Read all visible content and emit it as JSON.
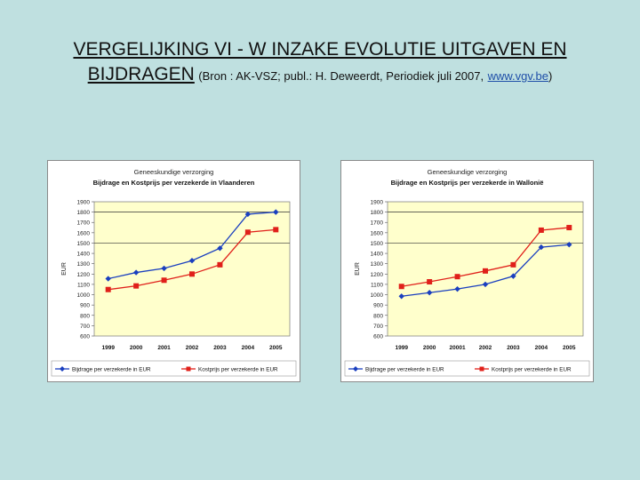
{
  "slide": {
    "title_line1": "VERGELIJKING VI - W INZAKE EVOLUTIE UITGAVEN EN",
    "title_line2_main": "BIJDRAGEN",
    "title_line2_source_prefix": "(Bron : AK-VSZ; publ.: H. Deweerdt, Periodiek juli 2007,",
    "title_line2_link": "www.vgv.be",
    "title_line2_source_suffix": ")"
  },
  "chart_data": [
    {
      "type": "line",
      "title": "Geneeskundige verzorging",
      "subtitle": "Bijdrage en Kostprijs per verzekerde in Vlaanderen",
      "xlabel": "",
      "ylabel": "EUR",
      "categories": [
        "1999",
        "2000",
        "2001",
        "2002",
        "2003",
        "2004",
        "2005"
      ],
      "ylim": [
        600,
        1900
      ],
      "yticks": [
        600,
        700,
        800,
        900,
        1000,
        1100,
        1200,
        1300,
        1400,
        1500,
        1600,
        1700,
        1800,
        1900
      ],
      "gridlines": [
        1500,
        1800
      ],
      "legend_position": "bottom",
      "plot_background": "#ffffcc",
      "series": [
        {
          "name": "Bijdrage per verzekerde in EUR",
          "color": "#1a3fbf",
          "marker": "diamond",
          "values": [
            1155,
            1215,
            1255,
            1330,
            1450,
            1780,
            1800
          ]
        },
        {
          "name": "Kostprijs per verzekerde in EUR",
          "color": "#e0201a",
          "marker": "square",
          "values": [
            1050,
            1085,
            1140,
            1200,
            1290,
            1605,
            1630
          ]
        }
      ]
    },
    {
      "type": "line",
      "title": "Geneeskundige verzorging",
      "subtitle": "Bijdrage en Kostprijs per verzekerde in Wallonië",
      "xlabel": "",
      "ylabel": "EUR",
      "categories": [
        "1999",
        "2000",
        "20001",
        "2002",
        "2003",
        "2004",
        "2005"
      ],
      "ylim": [
        600,
        1900
      ],
      "yticks": [
        600,
        700,
        800,
        900,
        1000,
        1100,
        1200,
        1300,
        1400,
        1500,
        1600,
        1700,
        1800,
        1900
      ],
      "gridlines": [
        1500,
        1800
      ],
      "legend_position": "bottom",
      "plot_background": "#ffffcc",
      "series": [
        {
          "name": "Bijdrage per verzekerde in EUR",
          "color": "#1a3fbf",
          "marker": "diamond",
          "values": [
            985,
            1020,
            1055,
            1100,
            1180,
            1460,
            1485
          ]
        },
        {
          "name": "Kostprijs per verzekerde in EUR",
          "color": "#e0201a",
          "marker": "square",
          "values": [
            1080,
            1125,
            1175,
            1230,
            1290,
            1625,
            1650
          ]
        }
      ]
    }
  ]
}
